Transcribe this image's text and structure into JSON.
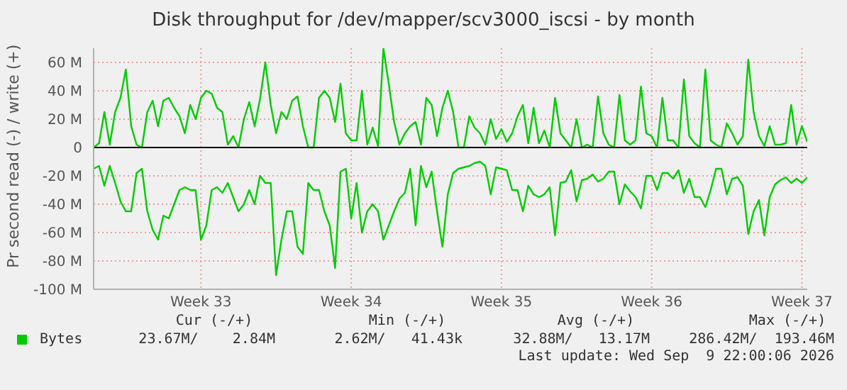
{
  "chart_data": {
    "type": "line",
    "title": "Disk throughput for /dev/mapper/scv3000_iscsi - by month",
    "ylabel": "Pr second read (-) / write (+)",
    "categories": [
      null,
      null,
      null,
      null,
      null,
      null,
      null,
      null,
      null,
      null,
      null,
      null,
      null,
      null,
      null,
      null,
      null,
      null,
      null,
      null,
      "Week 33",
      null,
      null,
      null,
      null,
      null,
      null,
      null,
      null,
      null,
      null,
      null,
      null,
      null,
      null,
      null,
      null,
      null,
      null,
      null,
      null,
      null,
      null,
      null,
      null,
      null,
      null,
      null,
      "Week 34",
      null,
      null,
      null,
      null,
      null,
      null,
      null,
      null,
      null,
      null,
      null,
      null,
      null,
      null,
      null,
      null,
      null,
      null,
      null,
      null,
      null,
      null,
      null,
      null,
      null,
      null,
      null,
      "Week 35",
      null,
      null,
      null,
      null,
      null,
      null,
      null,
      null,
      null,
      null,
      null,
      null,
      null,
      null,
      null,
      null,
      null,
      null,
      null,
      null,
      null,
      null,
      null,
      null,
      null,
      null,
      null,
      "Week 36",
      null,
      null,
      null,
      null,
      null,
      null,
      null,
      null,
      null,
      null,
      null,
      null,
      null,
      null,
      null,
      null,
      null,
      null,
      null,
      null,
      null,
      null,
      null,
      null,
      null,
      null,
      null,
      "Week 37",
      null
    ],
    "series": [
      {
        "name": "Bytes",
        "color": "#00cc00",
        "values": [
          0,
          3,
          25,
          2,
          25,
          35,
          55,
          15,
          2,
          0,
          25,
          33,
          15,
          33,
          35,
          28,
          22,
          10,
          30,
          20,
          35,
          40,
          38,
          28,
          25,
          2,
          8,
          0,
          20,
          32,
          15,
          34,
          60,
          30,
          10,
          25,
          20,
          33,
          36,
          15,
          0,
          0,
          35,
          40,
          35,
          18,
          45,
          10,
          5,
          5,
          40,
          2,
          14,
          1,
          70,
          45,
          18,
          2,
          10,
          15,
          18,
          2,
          35,
          30,
          8,
          28,
          40,
          25,
          0,
          0,
          22,
          14,
          10,
          2,
          20,
          6,
          13,
          4,
          10,
          22,
          30,
          3,
          28,
          3,
          12,
          0,
          35,
          10,
          5,
          0,
          20,
          0,
          2,
          0,
          36,
          10,
          2,
          0,
          37,
          5,
          2,
          5,
          43,
          10,
          8,
          0,
          35,
          5,
          5,
          0,
          48,
          8,
          3,
          0,
          55,
          5,
          2,
          0,
          17,
          10,
          2,
          8,
          62,
          25,
          8,
          1,
          15,
          2,
          2,
          3,
          30,
          2,
          15,
          4
        ]
      },
      {
        "color": "#00cc00",
        "values": [
          -15,
          -13,
          -27,
          -13,
          -25,
          -38,
          -45,
          -45,
          -18,
          -15,
          -45,
          -58,
          -65,
          -48,
          -50,
          -40,
          -30,
          -28,
          -30,
          -30,
          -65,
          -55,
          -30,
          -28,
          -32,
          -25,
          -35,
          -45,
          -40,
          -30,
          -40,
          -20,
          -25,
          -25,
          -90,
          -65,
          -45,
          -45,
          -70,
          -75,
          -25,
          -30,
          -30,
          -45,
          -55,
          -85,
          -17,
          -15,
          -50,
          -25,
          -60,
          -45,
          -40,
          -45,
          -65,
          -55,
          -45,
          -36,
          -32,
          -15,
          -55,
          -13,
          -28,
          -17,
          -45,
          -70,
          -33,
          -18,
          -15,
          -14,
          -13,
          -11,
          -10,
          -13,
          -33,
          -14,
          -15,
          -16,
          -30,
          -30,
          -45,
          -27,
          -33,
          -35,
          -33,
          -28,
          -62,
          -25,
          -24,
          -16,
          -38,
          -23,
          -22,
          -19,
          -24,
          -22,
          -17,
          -17,
          -40,
          -26,
          -31,
          -35,
          -43,
          -20,
          -20,
          -30,
          -18,
          -18,
          -22,
          -16,
          -32,
          -22,
          -35,
          -35,
          -42,
          -30,
          -15,
          -15,
          -33,
          -22,
          -21,
          -27,
          -61,
          -45,
          -37,
          -62,
          -35,
          -26,
          -23,
          -21,
          -25,
          -22,
          -25,
          -21
        ]
      }
    ],
    "ylim": [
      -100,
      70
    ],
    "yticks": [
      {
        "value": -100,
        "label": "-100 M"
      },
      {
        "value": -80,
        "label": "-80 M"
      },
      {
        "value": -60,
        "label": "-60 M"
      },
      {
        "value": -40,
        "label": "-40 M"
      },
      {
        "value": -20,
        "label": "-20 M"
      },
      0,
      {
        "value": 20,
        "label": "20 M"
      },
      {
        "value": 40,
        "label": "40 M"
      },
      {
        "value": 60,
        "label": "60 M"
      }
    ],
    "ref_lines": [
      {
        "axis": "y",
        "value": 0,
        "color": "#000000"
      }
    ],
    "grid": true,
    "legend": "bottom left",
    "annotations": [
      "Cur (-/+)",
      "Min (-/+)",
      "Avg (-/+)",
      "Max (-/+)",
      "23.67M/    2.84M",
      "2.62M/   41.43k",
      "32.88M/   13.17M",
      "286.42M/  193.46M",
      "Last update: Wed Sep  9 22:00:06 2026"
    ]
  }
}
